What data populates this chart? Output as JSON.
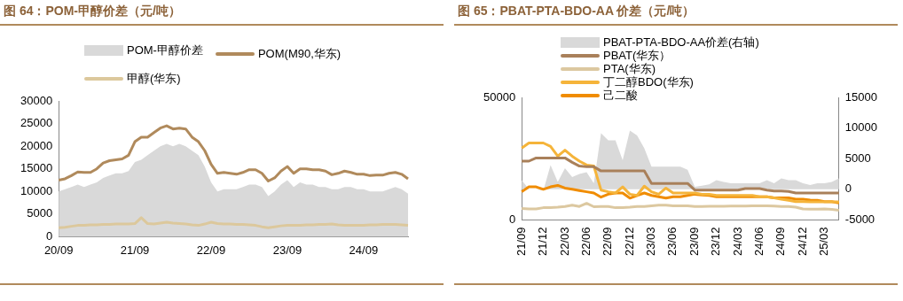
{
  "chart_data": [
    {
      "type": "line",
      "title": "图 64：POM-甲醇价差（元/吨）",
      "legend": "top",
      "categories": [
        "20/09",
        null,
        null,
        null,
        null,
        null,
        null,
        null,
        null,
        null,
        null,
        null,
        "21/09",
        null,
        null,
        null,
        null,
        null,
        null,
        null,
        null,
        null,
        null,
        null,
        "22/09",
        null,
        null,
        null,
        null,
        null,
        null,
        null,
        null,
        null,
        null,
        null,
        "23/09",
        null,
        null,
        null,
        null,
        null,
        null,
        null,
        null,
        null,
        null,
        null,
        "24/09",
        null,
        null,
        null,
        null,
        null,
        null,
        null
      ],
      "ylim": [
        0,
        30000
      ],
      "yticks": [
        0,
        5000,
        10000,
        15000,
        20000,
        25000,
        30000
      ],
      "series": [
        {
          "name": "POM-甲醇价差",
          "type": "area",
          "color": "#d9d9d9",
          "values": [
            10000,
            10500,
            11000,
            11500,
            11000,
            11500,
            12000,
            13000,
            13500,
            14000,
            14000,
            14500,
            16500,
            17000,
            18000,
            19000,
            20000,
            20500,
            20000,
            20500,
            20000,
            19000,
            18000,
            15500,
            12000,
            10000,
            10500,
            10500,
            10500,
            11000,
            11500,
            11500,
            11000,
            9000,
            10000,
            11500,
            12500,
            11000,
            12000,
            11500,
            11500,
            11000,
            11000,
            10500,
            10500,
            11000,
            11000,
            10500,
            10500,
            10000,
            10000,
            10000,
            10500,
            11000,
            10500,
            9500
          ]
        },
        {
          "name": "POM(M90,华东)",
          "color": "#b08a5c",
          "values": [
            12500,
            12800,
            13500,
            14300,
            14200,
            14200,
            15000,
            16300,
            16800,
            17000,
            17200,
            18000,
            21000,
            22000,
            22000,
            23000,
            24000,
            24500,
            23800,
            24000,
            23800,
            22000,
            21000,
            19000,
            16000,
            14000,
            14200,
            14000,
            13800,
            14200,
            14800,
            14800,
            14000,
            12300,
            13000,
            14500,
            15500,
            14000,
            15000,
            15000,
            14800,
            14800,
            14500,
            13700,
            14000,
            14500,
            14200,
            13800,
            13800,
            13500,
            13600,
            13600,
            14000,
            14200,
            13800,
            12800
          ]
        },
        {
          "name": "甲醇(华东)",
          "color": "#dcc89c",
          "values": [
            2000,
            2100,
            2300,
            2500,
            2500,
            2600,
            2600,
            2700,
            2700,
            2800,
            2800,
            2800,
            2900,
            4200,
            2900,
            2800,
            3000,
            3200,
            3000,
            2900,
            2800,
            2600,
            2500,
            2800,
            3200,
            2900,
            2800,
            2800,
            2700,
            2700,
            2600,
            2500,
            2200,
            2000,
            2200,
            2400,
            2500,
            2500,
            2500,
            2600,
            2600,
            2700,
            2700,
            2800,
            2600,
            2500,
            2500,
            2500,
            2500,
            2600,
            2600,
            2700,
            2700,
            2700,
            2600,
            2500
          ]
        }
      ]
    },
    {
      "type": "line",
      "title": "图 65：PBAT-PTA-BDO-AA 价差（元/吨）",
      "legend": "top",
      "categories": [
        "21/09",
        null,
        null,
        "21/12",
        null,
        null,
        "22/03",
        null,
        null,
        "22/06",
        null,
        null,
        "22/09",
        null,
        null,
        "22/12",
        null,
        null,
        "23/03",
        null,
        null,
        "23/06",
        null,
        null,
        "23/09",
        null,
        null,
        "23/12",
        null,
        null,
        "24/03",
        null,
        null,
        "24/06",
        null,
        null,
        "24/09",
        null,
        null,
        "24/12",
        null,
        null,
        "25/03",
        null,
        null
      ],
      "ylim": [
        0,
        50000
      ],
      "yticks": [
        0,
        50000
      ],
      "y2lim": [
        -5000,
        15000
      ],
      "y2ticks": [
        -5000,
        0,
        5000,
        10000,
        15000
      ],
      "series": [
        {
          "name": "PBAT-PTA-BDO-AA价差(右轴)",
          "type": "area",
          "axis": "y2",
          "color": "#d9d9d9",
          "values": [
            1500,
            0,
            0,
            -200,
            3950,
            1200,
            3450,
            2000,
            2500,
            2800,
            1000,
            9150,
            8000,
            8000,
            4750,
            9600,
            8800,
            6700,
            3700,
            3700,
            3700,
            3700,
            3700,
            3200,
            400,
            600,
            800,
            1500,
            1200,
            1000,
            1000,
            1000,
            1000,
            1000,
            1500,
            1000,
            1800,
            1500,
            1500,
            1000,
            700,
            1000,
            1000,
            1200,
            1800
          ]
        },
        {
          "name": "PBAT(华东）",
          "color": "#a9805a",
          "values": [
            24000,
            24000,
            25300,
            25300,
            25300,
            25300,
            25300,
            23500,
            22000,
            21700,
            21700,
            20000,
            20000,
            20000,
            20000,
            20000,
            20000,
            20000,
            14900,
            14900,
            14900,
            14900,
            14900,
            14900,
            12200,
            12200,
            12200,
            12200,
            12200,
            12200,
            12200,
            12800,
            12800,
            12800,
            12200,
            11800,
            11800,
            11600,
            11000,
            11000,
            11000,
            11000,
            11000,
            11000,
            11000
          ]
        },
        {
          "name": "PTA(华东)",
          "color": "#dcc8a0",
          "values": [
            4700,
            4500,
            4500,
            5000,
            5000,
            5200,
            5500,
            6000,
            5500,
            6800,
            5400,
            5500,
            5500,
            5000,
            5000,
            5200,
            5500,
            5500,
            5800,
            6000,
            6000,
            5800,
            5800,
            5800,
            5500,
            5500,
            5600,
            5600,
            5600,
            5700,
            5700,
            5700,
            5800,
            5800,
            5800,
            5700,
            5500,
            5500,
            5200,
            4500,
            4400,
            4400,
            4500,
            4300,
            4000
          ]
        },
        {
          "name": "丁二醇BDO(华东)",
          "color": "#f5b43a",
          "values": [
            29300,
            31400,
            31400,
            31400,
            30000,
            26000,
            28500,
            26000,
            24000,
            22400,
            22000,
            12200,
            11500,
            11000,
            13500,
            10500,
            10000,
            13800,
            11500,
            10500,
            13000,
            11000,
            11000,
            11000,
            11000,
            10500,
            10500,
            10000,
            10000,
            10000,
            10000,
            10000,
            10000,
            9500,
            9500,
            9000,
            8500,
            8000,
            7500,
            7500,
            7400,
            7400,
            7400,
            7400,
            7400
          ]
        },
        {
          "name": "己二酸",
          "color": "#f08c00",
          "values": [
            11500,
            13500,
            13500,
            12500,
            13500,
            14100,
            13000,
            12500,
            12000,
            11500,
            11000,
            9300,
            10500,
            11000,
            11000,
            8900,
            10000,
            11000,
            10000,
            9500,
            8900,
            9500,
            9500,
            10000,
            10500,
            10200,
            10000,
            9500,
            9500,
            9500,
            9500,
            9500,
            9500,
            9500,
            9500,
            9000,
            9000,
            9000,
            8500,
            8500,
            8100,
            8000,
            7500,
            7500,
            6900
          ]
        }
      ]
    }
  ]
}
